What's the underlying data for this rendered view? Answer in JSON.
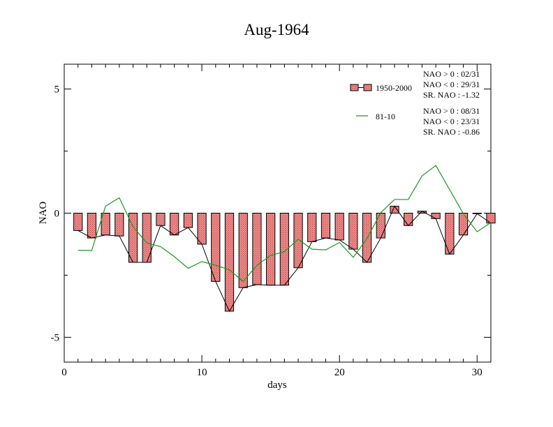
{
  "chart_data": {
    "type": "bar",
    "title": "Aug-1964",
    "xlabel": "days",
    "ylabel": "NAO",
    "xlim": [
      0,
      31
    ],
    "ylim": [
      -6,
      6
    ],
    "x_ticks": [
      0,
      10,
      20,
      30
    ],
    "y_ticks": [
      -5,
      0,
      5
    ],
    "x_tick_labels": [
      "0",
      "10",
      "20",
      "30"
    ],
    "y_tick_labels": [
      "-5",
      "0",
      "5"
    ],
    "x": [
      1,
      2,
      3,
      4,
      5,
      6,
      7,
      8,
      9,
      10,
      11,
      12,
      13,
      14,
      15,
      16,
      17,
      18,
      19,
      20,
      21,
      22,
      23,
      24,
      25,
      26,
      27,
      28,
      29,
      30,
      31
    ],
    "series": [
      {
        "name": "1950-2000",
        "kind": "bar",
        "color": "#e07070",
        "values": [
          -0.7,
          -1.0,
          -0.88,
          -0.92,
          -1.98,
          -1.98,
          -0.5,
          -0.88,
          -0.58,
          -1.25,
          -2.75,
          -3.95,
          -3.0,
          -2.88,
          -2.9,
          -2.9,
          -2.2,
          -1.15,
          -1.0,
          -1.08,
          -1.45,
          -1.98,
          -1.0,
          0.28,
          -0.5,
          0.08,
          -0.22,
          -1.65,
          -0.88,
          -0.02,
          -0.4
        ]
      },
      {
        "name": "81-10",
        "kind": "line",
        "color": "#1a9a1a",
        "values": [
          -1.5,
          -1.5,
          0.28,
          0.62,
          -0.55,
          -1.2,
          -1.35,
          -1.75,
          -2.22,
          -1.95,
          -2.1,
          -2.28,
          -2.75,
          -2.1,
          -1.7,
          -1.55,
          -1.05,
          -1.45,
          -1.48,
          -1.18,
          -1.78,
          -1.02,
          0.02,
          0.55,
          0.55,
          1.5,
          1.92,
          0.95,
          -0.02,
          -0.75,
          -0.38
        ]
      }
    ],
    "legend": {
      "position": "top-right",
      "entries": [
        {
          "label": "1950-2000",
          "stats": [
            "NAO > 0 : 02/31",
            "NAO < 0 : 29/31",
            "SR. NAO : -1.32"
          ]
        },
        {
          "label": "81-10",
          "stats": [
            "NAO > 0 : 08/31",
            "NAO < 0 : 23/31",
            "SR. NAO : -0.86"
          ]
        }
      ]
    },
    "grid": false
  }
}
